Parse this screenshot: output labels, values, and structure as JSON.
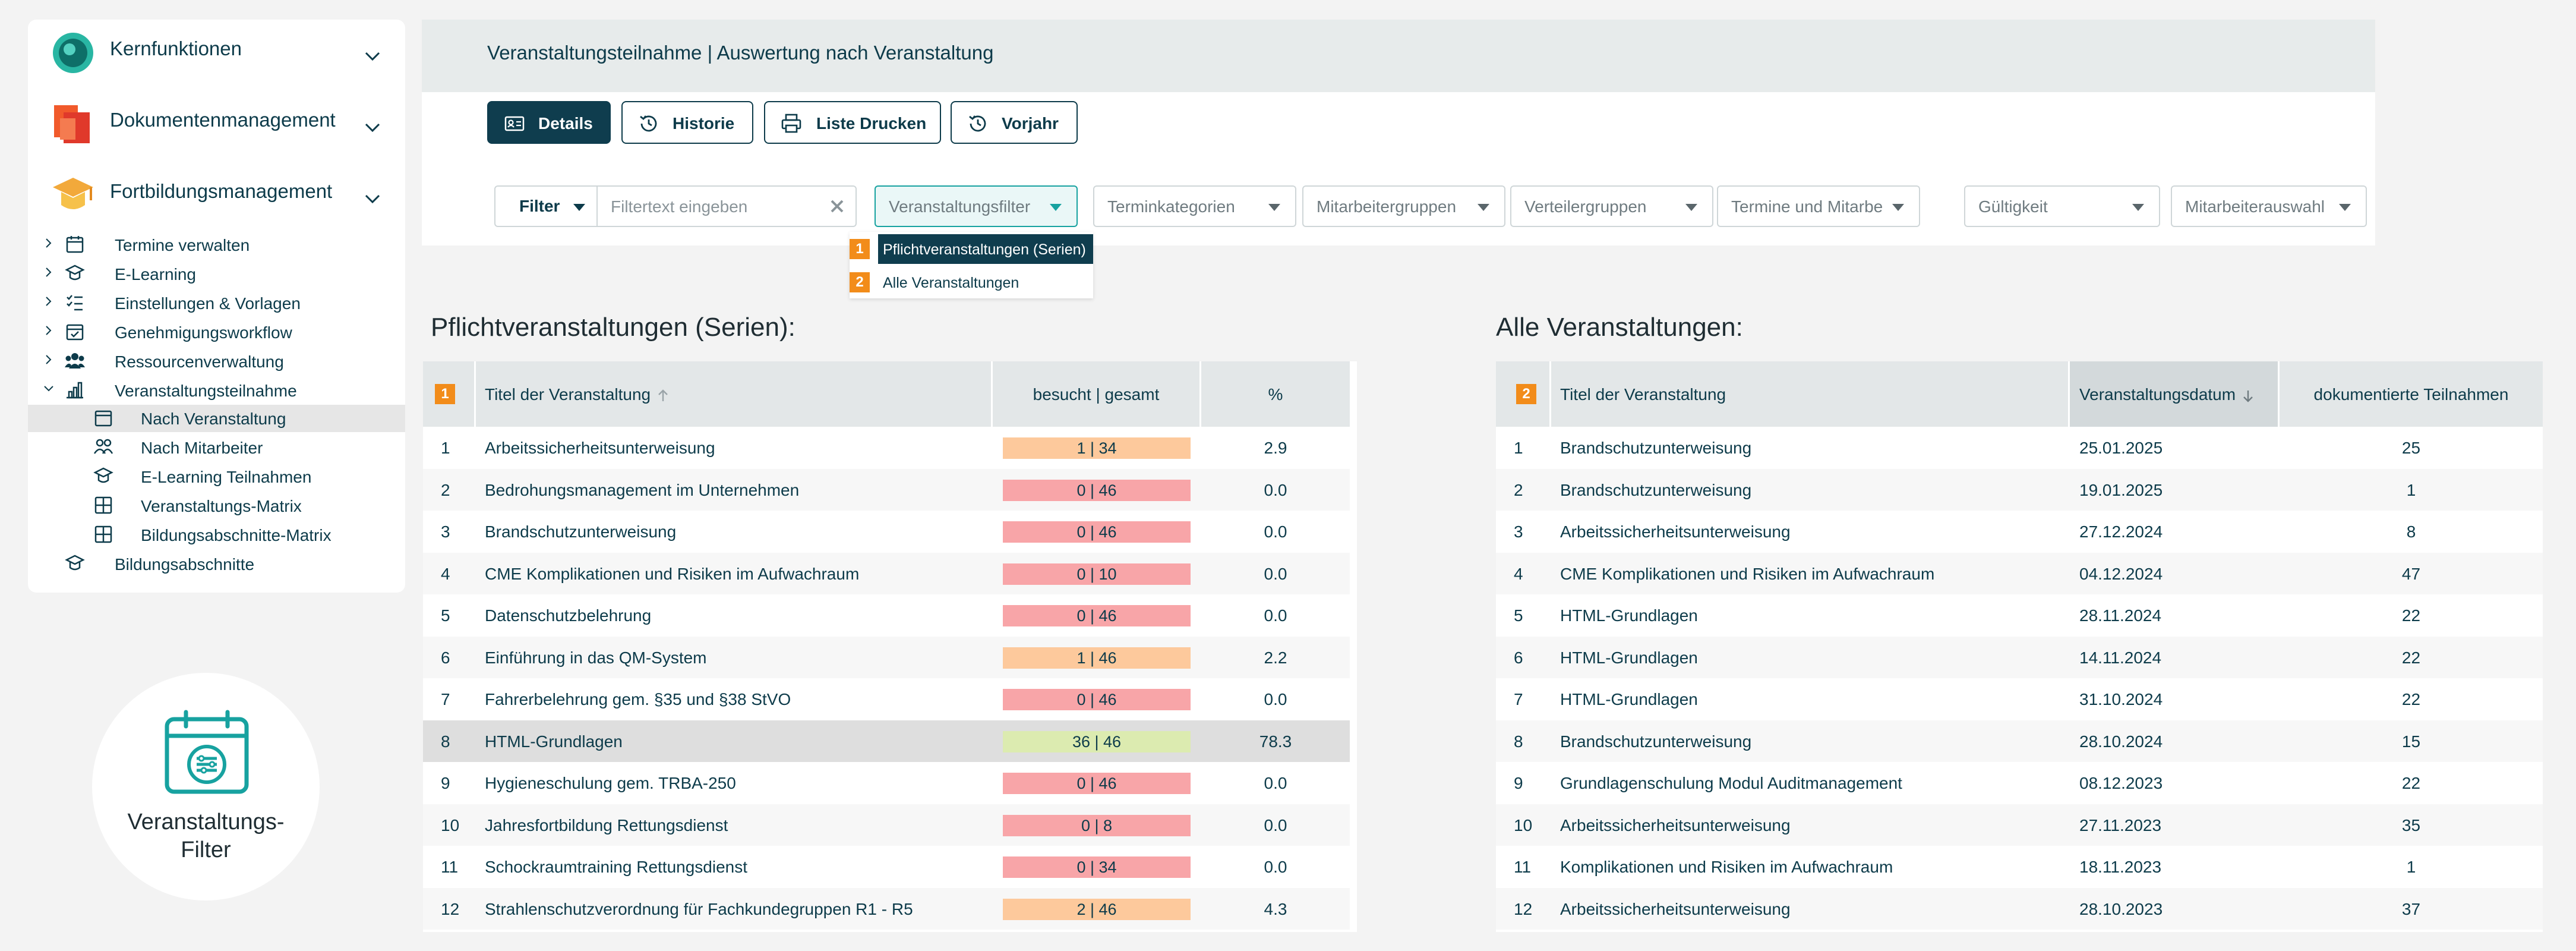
{
  "sidebar": {
    "modules": [
      {
        "label": "Kernfunktionen"
      },
      {
        "label": "Dokumentenmanagement"
      },
      {
        "label": "Fortbildungsmanagement"
      }
    ],
    "tree": [
      {
        "label": "Termine verwalten"
      },
      {
        "label": "E-Learning"
      },
      {
        "label": "Einstellungen & Vorlagen"
      },
      {
        "label": "Genehmigungsworkflow"
      },
      {
        "label": "Ressourcenverwaltung"
      },
      {
        "label": "Veranstaltungsteilnahme"
      },
      {
        "label": "Nach Veranstaltung"
      },
      {
        "label": "Nach Mitarbeiter"
      },
      {
        "label": "E-Learning Teilnahmen"
      },
      {
        "label": "Veranstaltungs-Matrix"
      },
      {
        "label": "Bildungsabschnitte-Matrix"
      },
      {
        "label": "Bildungsabschnitte"
      }
    ]
  },
  "badge": {
    "line1": "Veranstaltungs-",
    "line2": "Filter"
  },
  "header": {
    "title": "Veranstaltungsteilnahme | Auswertung nach Veranstaltung"
  },
  "toolbar": {
    "details_label": "Details",
    "history_label": "Historie",
    "print_label": "Liste Drucken",
    "prev_year_label": "Vorjahr"
  },
  "filter": {
    "select_label": "Filter",
    "placeholder": "Filtertext eingeben",
    "dropdowns": [
      "Veranstaltungsfilter",
      "Terminkategorien",
      "Mitarbeitergruppen",
      "Verteilergruppen",
      "Termine und Mitarbeiter",
      "Gültigkeit",
      "Mitarbeiterauswahl"
    ],
    "menu": [
      {
        "num": "1",
        "label": "Pflichtveranstaltungen (Serien)"
      },
      {
        "num": "2",
        "label": "Alle Veranstaltungen"
      }
    ]
  },
  "left_table": {
    "section_title": "Pflichtveranstaltungen (Serien):",
    "num": "1",
    "headers": {
      "title": "Titel der Veranstaltung",
      "visited": "besucht | gesamt",
      "percent": "%"
    },
    "rows": [
      {
        "n": "1",
        "title": "Arbeitssicherheitsunterweisung",
        "visited": "1 | 34",
        "percent": "2.9",
        "color": "#fdc99c"
      },
      {
        "n": "2",
        "title": "Bedrohungsmanagement im Unternehmen",
        "visited": "0 | 46",
        "percent": "0.0",
        "color": "#f8a5a8"
      },
      {
        "n": "3",
        "title": "Brandschutzunterweisung",
        "visited": "0 | 46",
        "percent": "0.0",
        "color": "#f8a5a8"
      },
      {
        "n": "4",
        "title": "CME Komplikationen und Risiken im Aufwachraum",
        "visited": "0 | 10",
        "percent": "0.0",
        "color": "#f8a5a8"
      },
      {
        "n": "5",
        "title": "Datenschutzbelehrung",
        "visited": "0 | 46",
        "percent": "0.0",
        "color": "#f8a5a8"
      },
      {
        "n": "6",
        "title": "Einführung in das QM-System",
        "visited": "1 | 46",
        "percent": "2.2",
        "color": "#fdc99c"
      },
      {
        "n": "7",
        "title": "Fahrerbelehrung gem. §35 und §38 StVO",
        "visited": "0 | 46",
        "percent": "0.0",
        "color": "#f8a5a8"
      },
      {
        "n": "8",
        "title": "HTML-Grundlagen",
        "visited": "36 | 46",
        "percent": "78.3",
        "color": "#dcebb0"
      },
      {
        "n": "9",
        "title": "Hygieneschulung gem. TRBA-250",
        "visited": "0 | 46",
        "percent": "0.0",
        "color": "#f8a5a8"
      },
      {
        "n": "10",
        "title": "Jahresfortbildung Rettungsdienst",
        "visited": "0 | 8",
        "percent": "0.0",
        "color": "#f8a5a8"
      },
      {
        "n": "11",
        "title": "Schockraumtraining Rettungsdienst",
        "visited": "0 | 34",
        "percent": "0.0",
        "color": "#f8a5a8"
      },
      {
        "n": "12",
        "title": "Strahlenschutzverordnung für Fachkundegruppen R1 - R5",
        "visited": "2 | 46",
        "percent": "4.3",
        "color": "#fdc99c"
      }
    ]
  },
  "right_table": {
    "section_title": "Alle Veranstaltungen:",
    "num": "2",
    "headers": {
      "title": "Titel der Veranstaltung",
      "date": "Veranstaltungsdatum",
      "count": "dokumentierte Teilnahmen"
    },
    "rows": [
      {
        "n": "1",
        "title": "Brandschutzunterweisung",
        "date": "25.01.2025",
        "count": "25"
      },
      {
        "n": "2",
        "title": "Brandschutzunterweisung",
        "date": "19.01.2025",
        "count": "1"
      },
      {
        "n": "3",
        "title": "Arbeitssicherheitsunterweisung",
        "date": "27.12.2024",
        "count": "8"
      },
      {
        "n": "4",
        "title": "CME Komplikationen und Risiken im Aufwachraum",
        "date": "04.12.2024",
        "count": "47"
      },
      {
        "n": "5",
        "title": "HTML-Grundlagen",
        "date": "28.11.2024",
        "count": "22"
      },
      {
        "n": "6",
        "title": "HTML-Grundlagen",
        "date": "14.11.2024",
        "count": "22"
      },
      {
        "n": "7",
        "title": "HTML-Grundlagen",
        "date": "31.10.2024",
        "count": "22"
      },
      {
        "n": "8",
        "title": "Brandschutzunterweisung",
        "date": "28.10.2024",
        "count": "15"
      },
      {
        "n": "9",
        "title": "Grundlagenschulung Modul Auditmanagement",
        "date": "08.12.2023",
        "count": "22"
      },
      {
        "n": "10",
        "title": "Arbeitssicherheitsunterweisung",
        "date": "27.11.2023",
        "count": "35"
      },
      {
        "n": "11",
        "title": "Komplikationen und Risiken im Aufwachraum",
        "date": "18.11.2023",
        "count": "1"
      },
      {
        "n": "12",
        "title": "Arbeitssicherheitsunterweisung",
        "date": "28.10.2023",
        "count": "37"
      }
    ]
  },
  "colors": {
    "brand": "#0f3d4e",
    "accent_orange": "#f28c1a",
    "teal": "#17a2a0",
    "bar_red": "#f8a5a8",
    "bar_orange": "#fdc99c",
    "bar_green": "#dcebb0"
  }
}
